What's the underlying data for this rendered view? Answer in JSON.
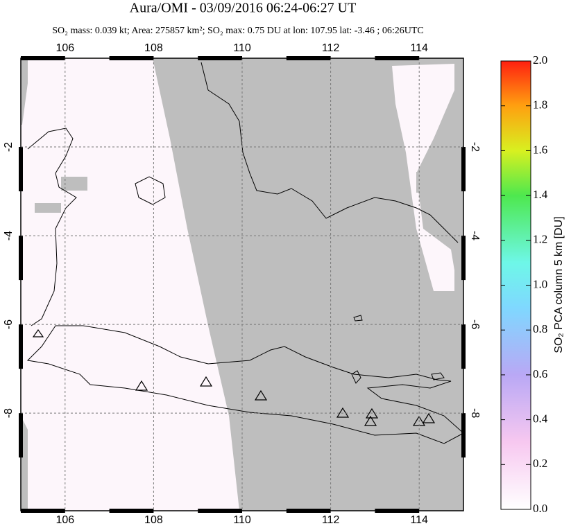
{
  "map": {
    "title": "Aura/OMI - 03/09/2016 06:24-06:27 UT",
    "subtitle": "SO₂ mass: 0.039 kt; Area: 275857 km²; SO₂ max: 0.75 DU at lon: 107.95 lat: -3.46 ; 06:26UTC",
    "lon_range": [
      105,
      115
    ],
    "lat_range": [
      0,
      -10.2
    ],
    "lon_ticks": [
      106,
      108,
      110,
      112,
      114
    ],
    "lat_ticks": [
      -2,
      -4,
      -6,
      -8
    ],
    "colorbar": {
      "label": "SO₂ PCA column 5 km [DU]",
      "range": [
        0,
        2
      ],
      "ticks": [
        {
          "value": 0,
          "label": "0.0"
        },
        {
          "value": 0.2,
          "label": "0.2"
        },
        {
          "value": 0.4,
          "label": "0.4"
        },
        {
          "value": 0.6,
          "label": "0.6"
        },
        {
          "value": 0.8,
          "label": "0.8"
        },
        {
          "value": 1,
          "label": "1.0"
        },
        {
          "value": 1.2,
          "label": "1.2"
        },
        {
          "value": 1.4,
          "label": "1.4"
        },
        {
          "value": 1.6,
          "label": "1.6"
        },
        {
          "value": 1.8,
          "label": "1.8"
        },
        {
          "value": 2,
          "label": "2.0"
        }
      ]
    }
  }
}
